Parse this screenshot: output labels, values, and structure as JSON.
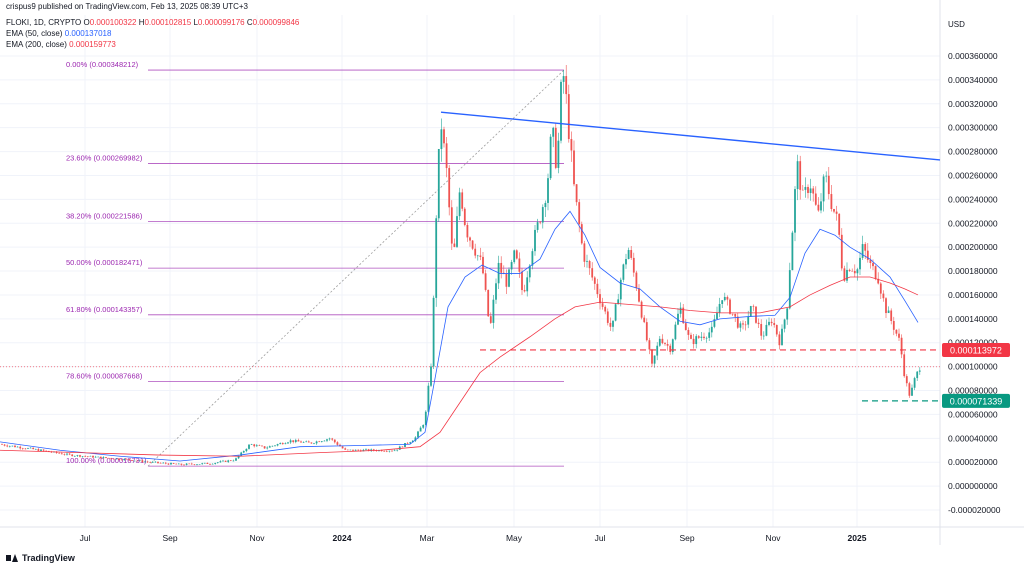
{
  "header": {
    "credit": "crispus9 published on TradingView.com, Feb 13, 2025 08:39 UTC+3",
    "symbol": "FLOKI, 1D, CRYPTO",
    "o_label": "O",
    "o_value": "0.000100322",
    "h_label": "H",
    "h_value": "0.000102815",
    "l_label": "L",
    "l_value": "0.000099176",
    "c_label": "C",
    "c_value": "0.000099846",
    "ema50_label": "EMA (50, close)",
    "ema50_value": "0.000137018",
    "ema200_label": "EMA (200, close)",
    "ema200_value": "0.000159773",
    "currency": "USD"
  },
  "branding": {
    "name": "TradingView",
    "logo_icon": "tradingview-logo-icon"
  },
  "colors": {
    "up": "#26a69a",
    "down": "#ef5350",
    "ema50": "#2962ff",
    "ema200": "#f23645",
    "fib": "#9c27b0",
    "trend": "#2962ff",
    "resistance_label_bg": "#f23645",
    "support_label_bg": "#089981",
    "price_label": "#f23645",
    "grid": "#f0f3fa"
  },
  "chart_data": {
    "type": "candlestick",
    "symbol": "FLOKI",
    "timeframe": "1D",
    "x_axis_labels": [
      "Jul",
      "Sep",
      "Nov",
      "2024",
      "Mar",
      "May",
      "Jul",
      "Sep",
      "Nov",
      "2025"
    ],
    "y_ticks": [
      "0.000360000",
      "0.000340000",
      "0.000320000",
      "0.000300000",
      "0.000280000",
      "0.000260000",
      "0.000240000",
      "0.000220000",
      "0.000200000",
      "0.000180000",
      "0.000160000",
      "0.000140000",
      "0.000120000",
      "0.000100000",
      "0.000080000",
      "0.000060000",
      "0.000040000",
      "0.000020000",
      "0.000000000",
      "-0.000020000"
    ],
    "ylim": [
      -2e-05,
      0.00036
    ],
    "price_path": [
      [
        0,
        3.5e-05
      ],
      [
        40,
        3e-05
      ],
      [
        70,
        2.6e-05
      ],
      [
        100,
        2.4e-05
      ],
      [
        130,
        2.2e-05
      ],
      [
        150,
        2e-05
      ],
      [
        180,
        1.8e-05
      ],
      [
        210,
        1.9e-05
      ],
      [
        235,
        2.2e-05
      ],
      [
        250,
        3.5e-05
      ],
      [
        265,
        3.2e-05
      ],
      [
        290,
        3.8e-05
      ],
      [
        310,
        3.6e-05
      ],
      [
        330,
        4e-05
      ],
      [
        345,
        3e-05
      ],
      [
        370,
        3e-05
      ],
      [
        395,
        3e-05
      ],
      [
        415,
        4e-05
      ],
      [
        425,
        5.5e-05
      ],
      [
        432,
        0.00011
      ],
      [
        437,
        0.00025
      ],
      [
        441,
        0.000305
      ],
      [
        447,
        0.00026
      ],
      [
        453,
        0.000185
      ],
      [
        460,
        0.00025
      ],
      [
        466,
        0.000215
      ],
      [
        474,
        0.0002
      ],
      [
        482,
        0.000185
      ],
      [
        490,
        0.00013
      ],
      [
        498,
        0.000185
      ],
      [
        507,
        0.00017
      ],
      [
        515,
        0.000195
      ],
      [
        523,
        0.00016
      ],
      [
        532,
        0.0002
      ],
      [
        540,
        0.000225
      ],
      [
        547,
        0.00025
      ],
      [
        552,
        0.0003
      ],
      [
        557,
        0.000265
      ],
      [
        561,
        0.00033
      ],
      [
        564,
        0.000345
      ],
      [
        568,
        0.000305
      ],
      [
        574,
        0.00025
      ],
      [
        583,
        0.000195
      ],
      [
        592,
        0.000175
      ],
      [
        603,
        0.00015
      ],
      [
        612,
        0.00013
      ],
      [
        620,
        0.00017
      ],
      [
        628,
        0.0002
      ],
      [
        636,
        0.00017
      ],
      [
        645,
        0.00013
      ],
      [
        652,
        0.0001
      ],
      [
        660,
        0.000125
      ],
      [
        670,
        0.000115
      ],
      [
        680,
        0.00015
      ],
      [
        690,
        0.00012
      ],
      [
        700,
        0.000125
      ],
      [
        712,
        0.00013
      ],
      [
        722,
        0.00016
      ],
      [
        732,
        0.000145
      ],
      [
        742,
        0.00013
      ],
      [
        752,
        0.00015
      ],
      [
        762,
        0.000125
      ],
      [
        772,
        0.00014
      ],
      [
        780,
        0.00012
      ],
      [
        787,
        0.00015
      ],
      [
        792,
        0.00021
      ],
      [
        797,
        0.00027
      ],
      [
        803,
        0.00024
      ],
      [
        810,
        0.000255
      ],
      [
        818,
        0.000225
      ],
      [
        825,
        0.00026
      ],
      [
        832,
        0.000235
      ],
      [
        838,
        0.00022
      ],
      [
        843,
        0.000175
      ],
      [
        850,
        0.000185
      ],
      [
        857,
        0.00018
      ],
      [
        863,
        0.0002
      ],
      [
        870,
        0.000185
      ],
      [
        878,
        0.000175
      ],
      [
        885,
        0.00015
      ],
      [
        893,
        0.000135
      ],
      [
        900,
        0.00012
      ],
      [
        905,
        9e-05
      ],
      [
        910,
        7.5e-05
      ],
      [
        915,
        9e-05
      ],
      [
        920,
        0.0001
      ]
    ],
    "ema50_path": [
      [
        0,
        3.7e-05
      ],
      [
        60,
        3e-05
      ],
      [
        120,
        2.5e-05
      ],
      [
        180,
        2.1e-05
      ],
      [
        240,
        2.6e-05
      ],
      [
        300,
        3.3e-05
      ],
      [
        360,
        3.4e-05
      ],
      [
        410,
        3.5e-05
      ],
      [
        425,
        4.5e-05
      ],
      [
        435,
        9e-05
      ],
      [
        448,
        0.00015
      ],
      [
        465,
        0.000175
      ],
      [
        482,
        0.000185
      ],
      [
        500,
        0.000178
      ],
      [
        520,
        0.000178
      ],
      [
        540,
        0.00019
      ],
      [
        555,
        0.000215
      ],
      [
        570,
        0.00023
      ],
      [
        585,
        0.00021
      ],
      [
        600,
        0.000183
      ],
      [
        620,
        0.00017
      ],
      [
        640,
        0.000165
      ],
      [
        660,
        0.00015
      ],
      [
        680,
        0.000138
      ],
      [
        700,
        0.000135
      ],
      [
        720,
        0.00014
      ],
      [
        750,
        0.000142
      ],
      [
        775,
        0.000143
      ],
      [
        790,
        0.000158
      ],
      [
        805,
        0.000195
      ],
      [
        820,
        0.000215
      ],
      [
        835,
        0.00021
      ],
      [
        850,
        0.0002
      ],
      [
        870,
        0.00019
      ],
      [
        890,
        0.000175
      ],
      [
        905,
        0.000155
      ],
      [
        918,
        0.000137
      ]
    ],
    "ema200_path": [
      [
        0,
        3e-05
      ],
      [
        80,
        2.8e-05
      ],
      [
        160,
        2.6e-05
      ],
      [
        240,
        2.5e-05
      ],
      [
        320,
        2.8e-05
      ],
      [
        380,
        3e-05
      ],
      [
        420,
        3.3e-05
      ],
      [
        440,
        4.5e-05
      ],
      [
        460,
        7e-05
      ],
      [
        480,
        9.5e-05
      ],
      [
        500,
        0.000108
      ],
      [
        530,
        0.000125
      ],
      [
        555,
        0.00014
      ],
      [
        575,
        0.00015
      ],
      [
        600,
        0.000154
      ],
      [
        630,
        0.000152
      ],
      [
        660,
        0.00015
      ],
      [
        690,
        0.000147
      ],
      [
        720,
        0.000145
      ],
      [
        760,
        0.000145
      ],
      [
        790,
        0.00015
      ],
      [
        810,
        0.00016
      ],
      [
        830,
        0.000168
      ],
      [
        850,
        0.000175
      ],
      [
        870,
        0.000175
      ],
      [
        890,
        0.00017
      ],
      [
        905,
        0.000165
      ],
      [
        918,
        0.00016
      ]
    ],
    "fib_levels": [
      {
        "label": "0.00% (0.000348212)",
        "value": 0.000348212
      },
      {
        "label": "23.60% (0.000269982)",
        "value": 0.000269982
      },
      {
        "label": "38.20% (0.000221586)",
        "value": 0.000221586
      },
      {
        "label": "50.00% (0.000182471)",
        "value": 0.000182471
      },
      {
        "label": "61.80% (0.000143357)",
        "value": 0.000143357
      },
      {
        "label": "78.60% (0.000087668)",
        "value": 8.7668e-05
      },
      {
        "label": "100.00% (0.000016731)",
        "value": 1.6731e-05
      }
    ],
    "trendline": {
      "from": [
        441,
        0.000313
      ],
      "to": [
        940,
        0.000273
      ]
    },
    "resistance": {
      "value": 0.000113972,
      "label": "0.000113972",
      "from_x": 480
    },
    "support": {
      "value": 7.1339e-05,
      "label": "0.000071339",
      "from_x": 862
    },
    "last_price": 9.9846e-05
  }
}
